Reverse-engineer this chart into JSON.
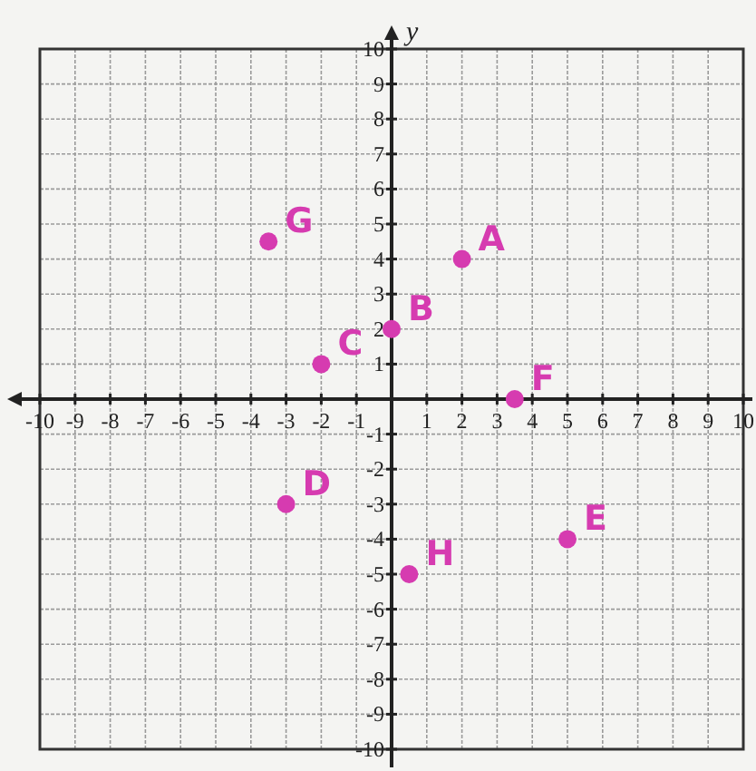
{
  "chart_data": {
    "type": "scatter",
    "ylabel": "y",
    "xlim": [
      -10,
      10
    ],
    "ylim": [
      -10,
      10
    ],
    "xticks": [
      -10,
      -9,
      -8,
      -7,
      -6,
      -5,
      -4,
      -3,
      -2,
      -1,
      1,
      2,
      3,
      4,
      5,
      6,
      7,
      8,
      9,
      10
    ],
    "yticks": [
      -10,
      -9,
      -8,
      -7,
      -6,
      -5,
      -4,
      -3,
      -2,
      -1,
      1,
      2,
      3,
      4,
      5,
      6,
      7,
      8,
      9,
      10
    ],
    "grid": true,
    "marker": "circle",
    "series": [
      {
        "color": "#d63bb0",
        "x": [
          2,
          0,
          -2,
          -3,
          5,
          3.5,
          -3.5,
          0.5
        ],
        "values": [
          4,
          2,
          1,
          -3,
          -4,
          0,
          4.5,
          -5
        ]
      }
    ],
    "annotations": [
      {
        "text": "A",
        "x": 2,
        "y": 4
      },
      {
        "text": "B",
        "x": 0,
        "y": 2
      },
      {
        "text": "C",
        "x": -2,
        "y": 1
      },
      {
        "text": "D",
        "x": -3,
        "y": -3
      },
      {
        "text": "E",
        "x": 5,
        "y": -4
      },
      {
        "text": "F",
        "x": 3.5,
        "y": 0
      },
      {
        "text": "G",
        "x": -3.5,
        "y": 4.5
      },
      {
        "text": "H",
        "x": 0.5,
        "y": -5
      }
    ]
  }
}
